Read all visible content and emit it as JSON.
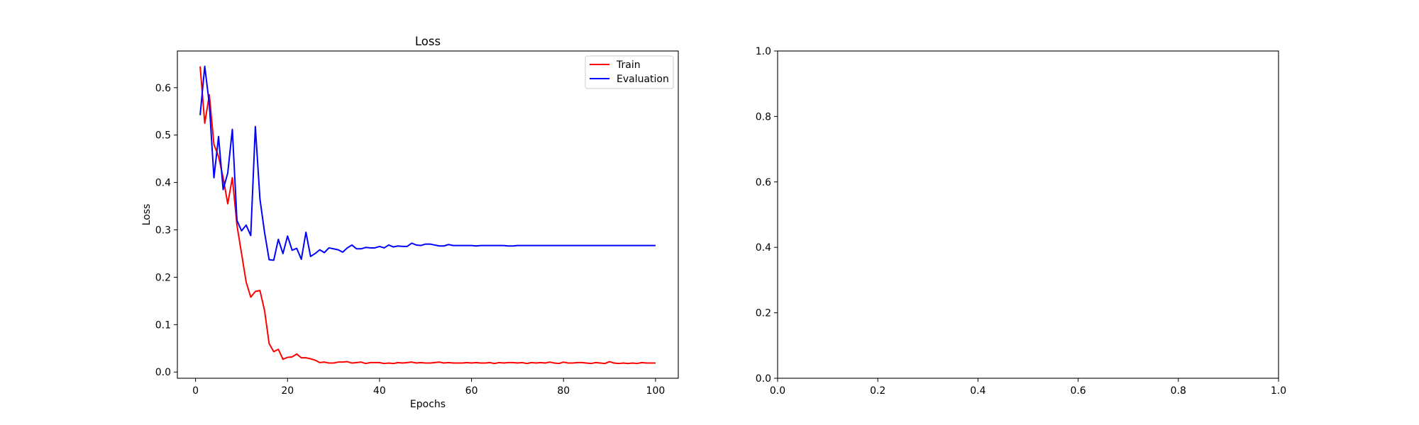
{
  "chart_data": [
    {
      "type": "line",
      "title": "Loss",
      "xlabel": "Epochs",
      "ylabel": "Loss",
      "xlim": [
        -3.95,
        104.95
      ],
      "ylim": [
        -0.0131,
        0.6774
      ],
      "xticks": [
        0,
        20,
        40,
        60,
        80,
        100
      ],
      "yticks": [
        0.0,
        0.1,
        0.2,
        0.3,
        0.4,
        0.5,
        0.6
      ],
      "grid": false,
      "legend": "top-right",
      "series": [
        {
          "name": "Train",
          "color": "#ff0000",
          "x": [
            1,
            2,
            3,
            4,
            5,
            6,
            7,
            8,
            9,
            10,
            11,
            12,
            13,
            14,
            15,
            16,
            17,
            18,
            19,
            20,
            21,
            22,
            23,
            24,
            25,
            26,
            27,
            28,
            29,
            30,
            31,
            32,
            33,
            34,
            35,
            36,
            37,
            38,
            39,
            40,
            41,
            42,
            43,
            44,
            45,
            46,
            47,
            48,
            49,
            50,
            51,
            52,
            53,
            54,
            55,
            56,
            57,
            58,
            59,
            60,
            61,
            62,
            63,
            64,
            65,
            66,
            67,
            68,
            69,
            70,
            71,
            72,
            73,
            74,
            75,
            76,
            77,
            78,
            79,
            80,
            81,
            82,
            83,
            84,
            85,
            86,
            87,
            88,
            89,
            90,
            91,
            92,
            93,
            94,
            95,
            96,
            97,
            98,
            99,
            100
          ],
          "y": [
            0.645,
            0.525,
            0.585,
            0.48,
            0.455,
            0.41,
            0.355,
            0.41,
            0.31,
            0.25,
            0.19,
            0.158,
            0.17,
            0.172,
            0.13,
            0.06,
            0.043,
            0.048,
            0.027,
            0.031,
            0.032,
            0.038,
            0.03,
            0.03,
            0.028,
            0.025,
            0.02,
            0.021,
            0.019,
            0.019,
            0.021,
            0.021,
            0.022,
            0.019,
            0.02,
            0.021,
            0.018,
            0.02,
            0.02,
            0.02,
            0.018,
            0.019,
            0.018,
            0.02,
            0.019,
            0.02,
            0.021,
            0.019,
            0.02,
            0.019,
            0.019,
            0.02,
            0.021,
            0.019,
            0.02,
            0.019,
            0.019,
            0.019,
            0.02,
            0.019,
            0.02,
            0.019,
            0.019,
            0.02,
            0.018,
            0.02,
            0.019,
            0.02,
            0.02,
            0.019,
            0.02,
            0.018,
            0.02,
            0.019,
            0.02,
            0.019,
            0.021,
            0.019,
            0.018,
            0.021,
            0.019,
            0.019,
            0.02,
            0.02,
            0.019,
            0.018,
            0.02,
            0.019,
            0.018,
            0.022,
            0.019,
            0.018,
            0.019,
            0.018,
            0.019,
            0.018,
            0.02,
            0.019,
            0.019,
            0.019
          ]
        },
        {
          "name": "Evaluation",
          "color": "#0000ff",
          "x": [
            1,
            2,
            3,
            4,
            5,
            6,
            7,
            8,
            9,
            10,
            11,
            12,
            13,
            14,
            15,
            16,
            17,
            18,
            19,
            20,
            21,
            22,
            23,
            24,
            25,
            26,
            27,
            28,
            29,
            30,
            31,
            32,
            33,
            34,
            35,
            36,
            37,
            38,
            39,
            40,
            41,
            42,
            43,
            44,
            45,
            46,
            47,
            48,
            49,
            50,
            51,
            52,
            53,
            54,
            55,
            56,
            57,
            58,
            59,
            60,
            61,
            62,
            63,
            64,
            65,
            66,
            67,
            68,
            69,
            70,
            71,
            72,
            73,
            74,
            75,
            76,
            77,
            78,
            79,
            80,
            81,
            82,
            83,
            84,
            85,
            86,
            87,
            88,
            89,
            90,
            91,
            92,
            93,
            94,
            95,
            96,
            97,
            98,
            99,
            100
          ],
          "y": [
            0.542,
            0.645,
            0.565,
            0.41,
            0.497,
            0.385,
            0.42,
            0.512,
            0.32,
            0.298,
            0.31,
            0.288,
            0.518,
            0.365,
            0.295,
            0.237,
            0.236,
            0.28,
            0.25,
            0.287,
            0.257,
            0.261,
            0.238,
            0.295,
            0.244,
            0.25,
            0.258,
            0.252,
            0.262,
            0.26,
            0.258,
            0.253,
            0.262,
            0.268,
            0.26,
            0.26,
            0.263,
            0.262,
            0.262,
            0.265,
            0.262,
            0.268,
            0.264,
            0.266,
            0.265,
            0.265,
            0.272,
            0.268,
            0.267,
            0.27,
            0.27,
            0.268,
            0.266,
            0.266,
            0.269,
            0.267,
            0.267,
            0.267,
            0.267,
            0.267,
            0.266,
            0.267,
            0.267,
            0.267,
            0.267,
            0.267,
            0.267,
            0.266,
            0.266,
            0.267,
            0.267,
            0.267,
            0.267,
            0.267,
            0.267,
            0.267,
            0.267,
            0.267,
            0.267,
            0.267,
            0.267,
            0.267,
            0.267,
            0.267,
            0.267,
            0.267,
            0.267,
            0.267,
            0.267,
            0.267,
            0.267,
            0.267,
            0.267,
            0.267,
            0.267,
            0.267,
            0.267,
            0.267,
            0.267,
            0.267
          ]
        }
      ]
    },
    {
      "type": "line",
      "title": "",
      "xlabel": "",
      "ylabel": "",
      "xlim": [
        0.0,
        1.0
      ],
      "ylim": [
        0.0,
        1.0
      ],
      "xticks": [
        0.0,
        0.2,
        0.4,
        0.6,
        0.8,
        1.0
      ],
      "yticks": [
        0.0,
        0.2,
        0.4,
        0.6,
        0.8,
        1.0
      ],
      "grid": false,
      "series": []
    }
  ]
}
